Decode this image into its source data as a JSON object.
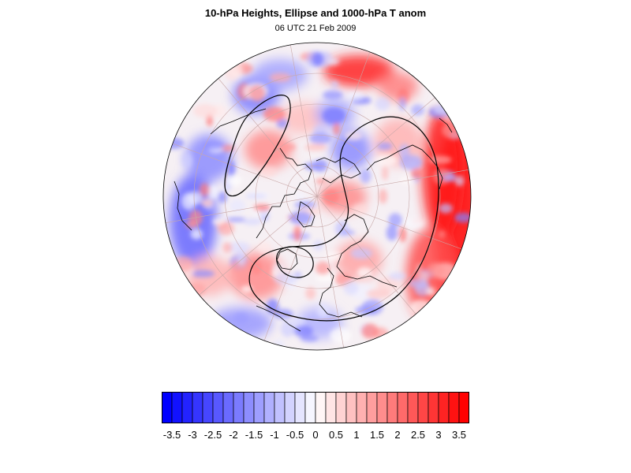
{
  "title": "10-hPa Heights, Ellipse and 1000-hPa T anom",
  "subtitle": "06 UTC 21 Feb 2009",
  "colors": {
    "cold_max": "#0000ff",
    "neutral": "#ffffff",
    "warm_max": "#ff0000",
    "contour": "#000000",
    "coast": "#000000",
    "graticule": "#c9a9a9"
  },
  "map": {
    "projection": "north polar stereographic (orthographic disk)",
    "field": "1000-hPa T anom",
    "overlays": [
      "10-hPa height contours",
      "ellipse",
      "coastlines",
      "lat/lon grid"
    ]
  },
  "colorbar": {
    "levels": [
      -3.75,
      -3.5,
      -3.25,
      -3,
      -2.75,
      -2.5,
      -2.25,
      -2,
      -1.75,
      -1.5,
      -1.25,
      -1,
      -0.75,
      -0.5,
      -0.25,
      0,
      0.25,
      0.5,
      0.75,
      1,
      1.25,
      1.5,
      1.75,
      2,
      2.25,
      2.5,
      2.75,
      3,
      3.25,
      3.5,
      3.75
    ],
    "tick_labels": [
      "-3.5",
      "-3",
      "-2.5",
      "-2",
      "-1.5",
      "-1",
      "-0.5",
      "0",
      "0.5",
      "1",
      "1.5",
      "2",
      "2.5",
      "3",
      "3.5"
    ]
  }
}
